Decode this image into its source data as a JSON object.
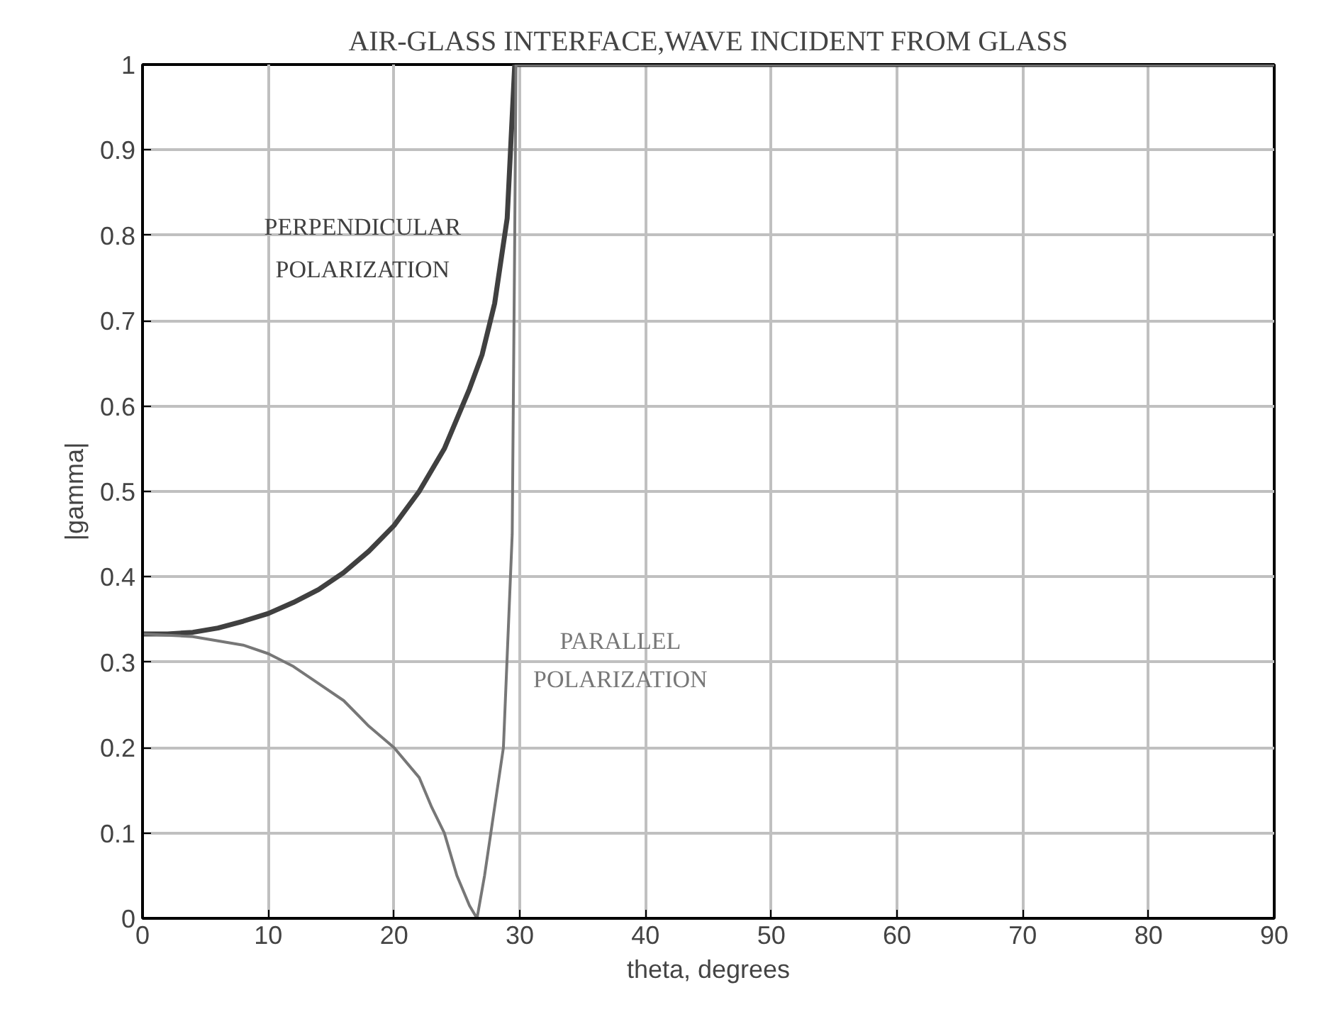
{
  "chart_data": {
    "type": "line",
    "title": "AIR-GLASS INTERFACE,WAVE INCIDENT FROM GLASS",
    "xlabel": "theta, degrees",
    "ylabel": "|gamma|",
    "xlim": [
      0,
      90
    ],
    "ylim": [
      0,
      1
    ],
    "xticks": [
      0,
      10,
      20,
      30,
      40,
      50,
      60,
      70,
      80,
      90
    ],
    "yticks": [
      0,
      0.1,
      0.2,
      0.3,
      0.4,
      0.5,
      0.6,
      0.7,
      0.8,
      0.9,
      1
    ],
    "grid": true,
    "marker": "none",
    "line_style": "solid",
    "series": [
      {
        "name": "PERPENDICULAR POLARIZATION",
        "color": "#404040",
        "x": [
          0,
          2,
          4,
          6,
          8,
          10,
          12,
          14,
          16,
          18,
          20,
          22,
          24,
          26,
          27,
          28,
          29,
          29.6,
          30,
          90
        ],
        "values": [
          0.333,
          0.333,
          0.335,
          0.34,
          0.348,
          0.357,
          0.37,
          0.385,
          0.405,
          0.43,
          0.46,
          0.5,
          0.55,
          0.62,
          0.66,
          0.72,
          0.82,
          1,
          1,
          1
        ]
      },
      {
        "name": "PARALLEL POLARIZATION",
        "color": "#777777",
        "x": [
          0,
          4,
          6,
          8,
          10,
          12,
          14,
          16,
          18,
          20,
          22,
          23,
          24,
          25,
          26,
          26.6,
          27.2,
          27.8,
          28.7,
          29.4,
          29.6,
          29.7,
          90
        ],
        "values": [
          0.333,
          0.33,
          0.325,
          0.32,
          0.31,
          0.295,
          0.275,
          0.255,
          0.225,
          0.2,
          0.165,
          0.13,
          0.1,
          0.05,
          0.015,
          0,
          0.05,
          0.11,
          0.2,
          0.45,
          0.8,
          1,
          1
        ]
      }
    ]
  }
}
